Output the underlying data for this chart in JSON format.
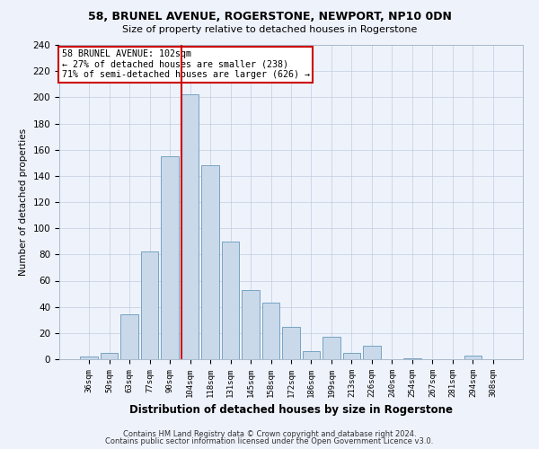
{
  "title1": "58, BRUNEL AVENUE, ROGERSTONE, NEWPORT, NP10 0DN",
  "title2": "Size of property relative to detached houses in Rogerstone",
  "xlabel": "Distribution of detached houses by size in Rogerstone",
  "ylabel": "Number of detached properties",
  "categories": [
    "36sqm",
    "50sqm",
    "63sqm",
    "77sqm",
    "90sqm",
    "104sqm",
    "118sqm",
    "131sqm",
    "145sqm",
    "158sqm",
    "172sqm",
    "186sqm",
    "199sqm",
    "213sqm",
    "226sqm",
    "240sqm",
    "254sqm",
    "267sqm",
    "281sqm",
    "294sqm",
    "308sqm"
  ],
  "values": [
    2,
    5,
    34,
    82,
    155,
    202,
    148,
    90,
    53,
    43,
    25,
    6,
    17,
    5,
    10,
    0,
    1,
    0,
    0,
    3,
    0
  ],
  "bar_color": "#c9d9ea",
  "bar_edge_color": "#6699bb",
  "vline_x_index": 5,
  "vline_color": "#cc0000",
  "annotation_text": "58 BRUNEL AVENUE: 102sqm\n← 27% of detached houses are smaller (238)\n71% of semi-detached houses are larger (626) →",
  "annotation_box_color": "#ffffff",
  "annotation_box_edge": "#cc0000",
  "footer1": "Contains HM Land Registry data © Crown copyright and database right 2024.",
  "footer2": "Contains public sector information licensed under the Open Government Licence v3.0.",
  "bg_color": "#eef2fb",
  "ylim": [
    0,
    240
  ],
  "yticks": [
    0,
    20,
    40,
    60,
    80,
    100,
    120,
    140,
    160,
    180,
    200,
    220,
    240
  ]
}
